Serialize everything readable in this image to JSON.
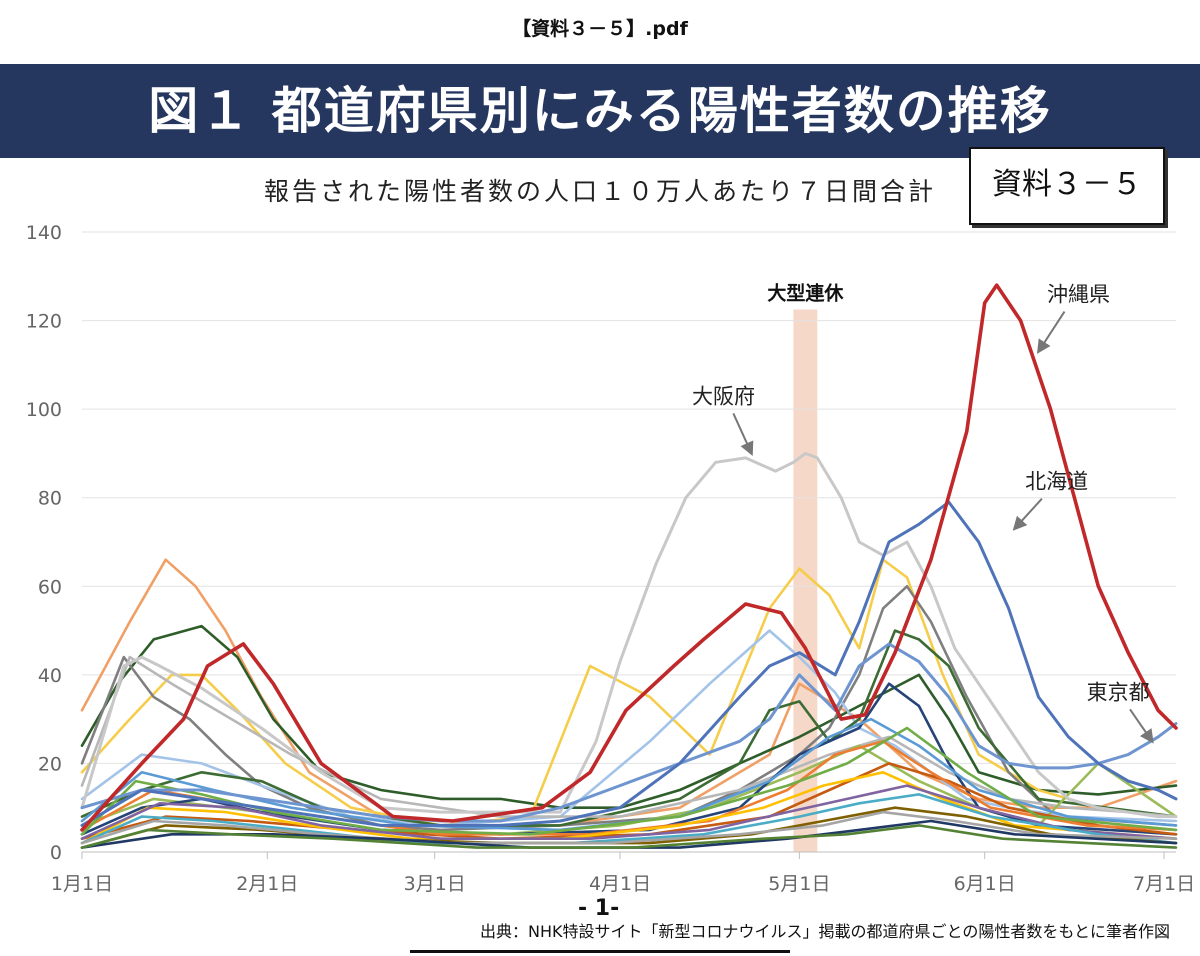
{
  "document": {
    "filename": "【資料３－５】.pdf",
    "banner_title": "図１ 都道府県別にみる陽性者数の推移",
    "stamp_label": "資料３－５",
    "page_number": "- 1-",
    "source_note": "出典：NHK特設サイト「新型コロナウイルス」掲載の都道府県ごとの陽性者数をもとに筆者作図"
  },
  "chart_data": {
    "type": "line",
    "title": "報告された陽性者数の人口１０万人あたり７日間合計",
    "xlabel": "",
    "ylabel": "",
    "x_tick_labels": [
      "1月1日",
      "2月1日",
      "3月1日",
      "4月1日",
      "5月1日",
      "6月1日",
      "7月1日"
    ],
    "x_tick_days": [
      0,
      31,
      59,
      90,
      120,
      151,
      181
    ],
    "xlim": [
      0,
      183
    ],
    "ylim": [
      0,
      140
    ],
    "y_ticks": [
      0,
      20,
      40,
      60,
      80,
      100,
      120,
      140
    ],
    "grid": true,
    "legend": "none",
    "highlight_band": {
      "label": "大型連休",
      "x_start": 119,
      "x_end": 123,
      "color": "#f6d8c8"
    },
    "highlighted_series": [
      {
        "name": "沖縄県",
        "color": "#c0282a",
        "x": [
          0,
          10,
          17,
          21,
          27,
          32,
          40,
          52,
          62,
          77,
          85,
          91,
          99,
          104,
          111,
          117,
          121,
          127,
          131,
          136,
          142,
          148,
          151,
          153,
          157,
          162,
          166,
          170,
          175,
          180,
          183
        ],
        "y": [
          5,
          20,
          30,
          42,
          47,
          38,
          20,
          8,
          7,
          10,
          18,
          32,
          42,
          48,
          56,
          54,
          46,
          30,
          31,
          45,
          66,
          95,
          124,
          128,
          120,
          100,
          80,
          60,
          45,
          32,
          28
        ]
      },
      {
        "name": "北海道",
        "color": "#4f73b9",
        "x": [
          0,
          10,
          20,
          30,
          40,
          50,
          60,
          70,
          80,
          90,
          100,
          110,
          115,
          120,
          126,
          130,
          135,
          140,
          145,
          150,
          155,
          160,
          165,
          170,
          175,
          180,
          183
        ],
        "y": [
          6,
          14,
          12,
          10,
          8,
          6,
          6,
          6,
          7,
          10,
          20,
          35,
          42,
          45,
          40,
          52,
          70,
          74,
          79,
          70,
          55,
          35,
          26,
          20,
          16,
          14,
          12
        ]
      },
      {
        "name": "大阪府",
        "color": "#c8c8c8",
        "x": [
          0,
          7,
          10,
          13,
          20,
          30,
          40,
          50,
          60,
          70,
          80,
          86,
          90,
          96,
          101,
          106,
          111,
          116,
          119,
          121,
          123,
          127,
          130,
          134,
          138,
          142,
          146,
          150,
          155,
          160,
          165,
          170,
          175,
          180,
          183
        ],
        "y": [
          10,
          42,
          44,
          42,
          37,
          28,
          18,
          10,
          9,
          9,
          9,
          25,
          43,
          65,
          80,
          88,
          89,
          86,
          88,
          90,
          89,
          80,
          70,
          67,
          70,
          60,
          46,
          38,
          28,
          18,
          12,
          10,
          9,
          8,
          8
        ]
      },
      {
        "name": "東京都",
        "color": "#6e95d0",
        "x": [
          0,
          10,
          20,
          30,
          40,
          50,
          60,
          70,
          80,
          90,
          100,
          110,
          115,
          120,
          126,
          130,
          135,
          140,
          145,
          150,
          155,
          160,
          165,
          170,
          175,
          180,
          183
        ],
        "y": [
          10,
          14,
          14,
          12,
          10,
          8,
          7,
          7,
          10,
          15,
          20,
          25,
          30,
          40,
          32,
          42,
          47,
          43,
          35,
          24,
          20,
          19,
          19,
          20,
          22,
          26,
          29
        ]
      }
    ],
    "series_labels": [
      {
        "text": "沖縄県",
        "points_to": "沖縄県",
        "at_x": 160,
        "at_y": 113
      },
      {
        "text": "北海道",
        "points_to": "北海道",
        "at_x": 156,
        "at_y": 73
      },
      {
        "text": "大阪府",
        "points_to": "大阪府",
        "at_x": 112,
        "at_y": 90
      },
      {
        "text": "東京都",
        "points_to": "東京都",
        "at_x": 179,
        "at_y": 25
      }
    ],
    "background_series": [
      {
        "color": "#f0a066",
        "x": [
          0,
          8,
          14,
          19,
          24,
          30,
          38,
          50,
          60,
          80,
          100,
          115,
          120,
          130,
          140,
          150,
          160,
          170,
          183
        ],
        "y": [
          32,
          52,
          66,
          60,
          50,
          35,
          18,
          8,
          6,
          6,
          10,
          22,
          38,
          30,
          18,
          12,
          10,
          10,
          16
        ]
      },
      {
        "color": "#2e5d2a",
        "x": [
          0,
          6,
          12,
          20,
          26,
          32,
          40,
          50,
          60,
          70,
          80,
          90,
          100,
          110,
          120,
          130,
          140,
          145,
          150,
          160,
          170,
          183
        ],
        "y": [
          24,
          38,
          48,
          51,
          44,
          30,
          18,
          14,
          12,
          12,
          10,
          10,
          14,
          20,
          26,
          33,
          40,
          30,
          18,
          14,
          13,
          15
        ]
      },
      {
        "color": "#f5cd4a",
        "x": [
          0,
          8,
          15,
          20,
          26,
          34,
          45,
          60,
          75,
          80,
          85,
          95,
          105,
          115,
          120,
          125,
          130,
          134,
          138,
          144,
          150,
          160,
          170,
          183
        ],
        "y": [
          18,
          30,
          40,
          40,
          32,
          20,
          10,
          6,
          8,
          25,
          42,
          35,
          22,
          55,
          64,
          58,
          46,
          66,
          62,
          40,
          22,
          14,
          10,
          8
        ]
      },
      {
        "color": "#7f7f7f",
        "x": [
          0,
          7,
          12,
          18,
          24,
          30,
          38,
          50,
          60,
          80,
          100,
          110,
          120,
          125,
          130,
          134,
          138,
          142,
          148,
          155,
          163,
          183
        ],
        "y": [
          20,
          44,
          35,
          30,
          22,
          15,
          10,
          6,
          5,
          6,
          8,
          14,
          22,
          28,
          40,
          55,
          60,
          52,
          35,
          18,
          8,
          6
        ]
      },
      {
        "color": "#a3c4e8",
        "x": [
          0,
          10,
          20,
          30,
          45,
          60,
          80,
          95,
          105,
          115,
          120,
          126,
          130,
          136,
          142,
          148,
          155,
          165,
          183
        ],
        "y": [
          12,
          22,
          20,
          15,
          8,
          6,
          8,
          25,
          38,
          50,
          44,
          36,
          28,
          24,
          18,
          12,
          10,
          8,
          7
        ]
      },
      {
        "color": "#3c6b34",
        "x": [
          0,
          10,
          20,
          30,
          40,
          60,
          80,
          100,
          110,
          115,
          120,
          125,
          130,
          136,
          140,
          145,
          150,
          160,
          183
        ],
        "y": [
          8,
          14,
          18,
          16,
          10,
          6,
          6,
          12,
          20,
          32,
          34,
          25,
          30,
          50,
          48,
          42,
          28,
          12,
          8
        ]
      },
      {
        "color": "#b7b7b7",
        "x": [
          0,
          8,
          15,
          25,
          35,
          50,
          70,
          90,
          110,
          125,
          135,
          145,
          155,
          165,
          175,
          183
        ],
        "y": [
          15,
          44,
          38,
          30,
          22,
          12,
          8,
          8,
          14,
          22,
          26,
          18,
          12,
          10,
          9,
          8
        ]
      },
      {
        "color": "#9bbb59",
        "x": [
          0,
          12,
          24,
          36,
          50,
          70,
          90,
          105,
          120,
          130,
          140,
          150,
          160,
          170,
          183
        ],
        "y": [
          6,
          12,
          10,
          8,
          5,
          4,
          6,
          10,
          18,
          24,
          16,
          10,
          6,
          20,
          8
        ]
      },
      {
        "color": "#264478",
        "x": [
          0,
          10,
          20,
          30,
          50,
          70,
          95,
          110,
          120,
          130,
          135,
          140,
          145,
          150,
          160,
          183
        ],
        "y": [
          4,
          10,
          12,
          9,
          5,
          4,
          5,
          10,
          22,
          28,
          38,
          33,
          20,
          10,
          6,
          4
        ]
      },
      {
        "color": "#c55a11",
        "x": [
          0,
          14,
          28,
          45,
          70,
          95,
          115,
          125,
          135,
          145,
          155,
          170,
          183
        ],
        "y": [
          3,
          8,
          7,
          5,
          3,
          4,
          8,
          14,
          20,
          16,
          10,
          6,
          4
        ]
      },
      {
        "color": "#5b9bd5",
        "x": [
          0,
          10,
          22,
          35,
          55,
          80,
          100,
          115,
          125,
          132,
          140,
          150,
          165,
          183
        ],
        "y": [
          7,
          18,
          14,
          10,
          6,
          5,
          8,
          16,
          26,
          30,
          24,
          14,
          8,
          6
        ]
      },
      {
        "color": "#ed7d31",
        "x": [
          0,
          12,
          25,
          40,
          60,
          85,
          105,
          118,
          126,
          134,
          142,
          152,
          168,
          183
        ],
        "y": [
          5,
          14,
          11,
          8,
          4,
          4,
          7,
          14,
          22,
          25,
          18,
          10,
          6,
          5
        ]
      },
      {
        "color": "#70ad47",
        "x": [
          0,
          9,
          20,
          32,
          50,
          75,
          100,
          118,
          128,
          138,
          148,
          160,
          183
        ],
        "y": [
          4,
          16,
          13,
          9,
          5,
          4,
          8,
          15,
          20,
          28,
          18,
          8,
          5
        ]
      },
      {
        "color": "#ffc000",
        "x": [
          0,
          11,
          24,
          38,
          55,
          80,
          100,
          114,
          124,
          134,
          144,
          156,
          183
        ],
        "y": [
          2,
          10,
          9,
          6,
          3,
          3,
          6,
          10,
          15,
          18,
          12,
          6,
          3
        ]
      },
      {
        "color": "#8064a2",
        "x": [
          0,
          13,
          26,
          40,
          60,
          85,
          105,
          118,
          128,
          138,
          150,
          165,
          183
        ],
        "y": [
          3,
          11,
          10,
          6,
          3,
          3,
          5,
          9,
          12,
          15,
          10,
          5,
          3
        ]
      },
      {
        "color": "#4bacc6",
        "x": [
          0,
          10,
          22,
          36,
          56,
          82,
          104,
          120,
          130,
          140,
          152,
          170,
          183
        ],
        "y": [
          2,
          8,
          7,
          5,
          2,
          2,
          4,
          8,
          11,
          13,
          8,
          4,
          2
        ]
      },
      {
        "color": "#7f6000",
        "x": [
          0,
          14,
          30,
          48,
          70,
          95,
          112,
          124,
          136,
          148,
          162,
          183
        ],
        "y": [
          1,
          6,
          5,
          3,
          2,
          2,
          4,
          7,
          10,
          8,
          4,
          2
        ]
      },
      {
        "color": "#a5a5a5",
        "x": [
          0,
          12,
          24,
          40,
          62,
          88,
          110,
          124,
          134,
          146,
          160,
          183
        ],
        "y": [
          2,
          7,
          6,
          4,
          2,
          2,
          4,
          6,
          9,
          7,
          4,
          3
        ]
      },
      {
        "color": "#1f3864",
        "x": [
          0,
          15,
          32,
          50,
          75,
          100,
          118,
          130,
          142,
          156,
          183
        ],
        "y": [
          1,
          4,
          4,
          3,
          1,
          1,
          3,
          5,
          7,
          4,
          2
        ]
      },
      {
        "color": "#548235",
        "x": [
          0,
          11,
          25,
          42,
          66,
          92,
          114,
          128,
          140,
          154,
          183
        ],
        "y": [
          1,
          5,
          4,
          3,
          1,
          1,
          3,
          4,
          6,
          3,
          1
        ]
      }
    ]
  }
}
